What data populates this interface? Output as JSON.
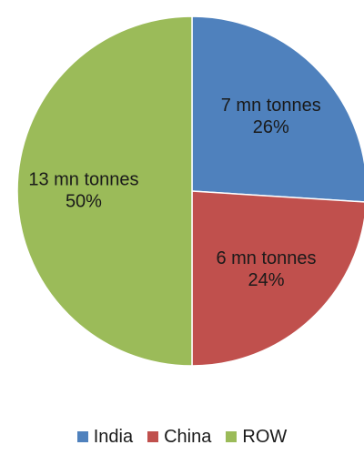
{
  "chart_data": {
    "type": "pie",
    "title": "",
    "start_angle_deg": 0,
    "direction": "clockwise",
    "legend_position": "bottom",
    "slices": [
      {
        "name": "India",
        "value": 26,
        "color": "#4F81BD",
        "label_lines": [
          "7 mn tonnes",
          "26%"
        ]
      },
      {
        "name": "China",
        "value": 24,
        "color": "#C0504D",
        "label_lines": [
          "6 mn tonnes",
          "24%"
        ]
      },
      {
        "name": "ROW",
        "value": 50,
        "color": "#9BBB59",
        "label_lines": [
          "13 mn tonnes",
          "50%"
        ]
      }
    ]
  }
}
